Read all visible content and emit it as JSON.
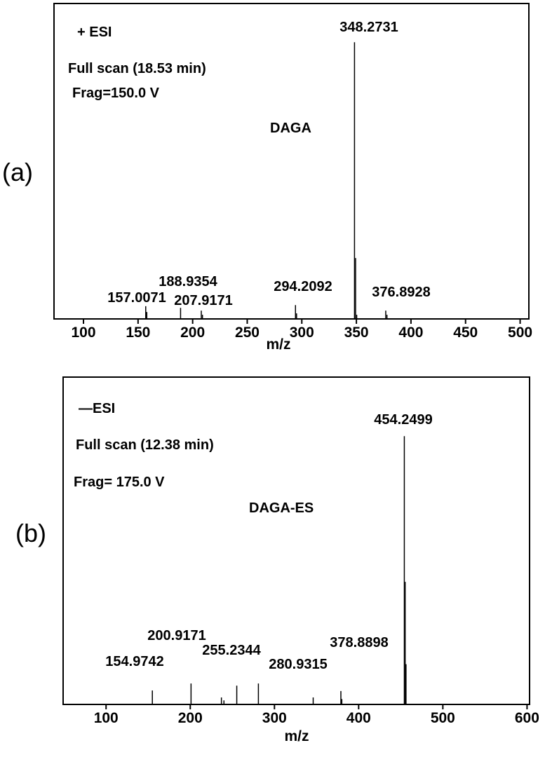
{
  "chart_data": [
    {
      "type": "spectrum",
      "panel_label": "(a)",
      "x_label": "m/z",
      "annotations": [
        "+ ESI",
        "Full scan (18.53 min)",
        "Frag=150.0 V",
        "DAGA"
      ],
      "x": [
        157.0071,
        188.9354,
        207.9171,
        294.2092,
        348.2731,
        376.8928
      ],
      "values": [
        4.6,
        4,
        3,
        5,
        100,
        3
      ],
      "minor_x": [
        158,
        209,
        295.2,
        349.27,
        350.28,
        378
      ],
      "minor_values": [
        2.5,
        1.5,
        2,
        22,
        1.5,
        1.5
      ],
      "color": "#000000",
      "xlim": [
        73,
        508
      ],
      "xticks": [
        100,
        150,
        200,
        250,
        300,
        350,
        400,
        450,
        500
      ],
      "ylim": [
        0,
        114
      ]
    },
    {
      "type": "spectrum",
      "panel_label": "(b)",
      "x_label": "m/z",
      "annotations": [
        "—ESI",
        "Full scan (12.38 min)",
        "Frag= 175.0 V",
        "DAGA-ES"
      ],
      "x": [
        154.9742,
        200.9171,
        255.2344,
        280.9315,
        378.8898,
        454.2499
      ],
      "values": [
        5.2,
        7.8,
        7,
        7.8,
        5,
        100
      ],
      "minor_x": [
        237,
        240,
        346,
        455.25,
        456.25,
        380
      ],
      "minor_values": [
        2.6,
        1.5,
        2.6,
        45.7,
        15,
        2
      ],
      "color": "#000000",
      "xlim": [
        49,
        603
      ],
      "xticks": [
        100,
        200,
        300,
        400,
        500,
        600
      ],
      "ylim": [
        0,
        122
      ]
    }
  ]
}
